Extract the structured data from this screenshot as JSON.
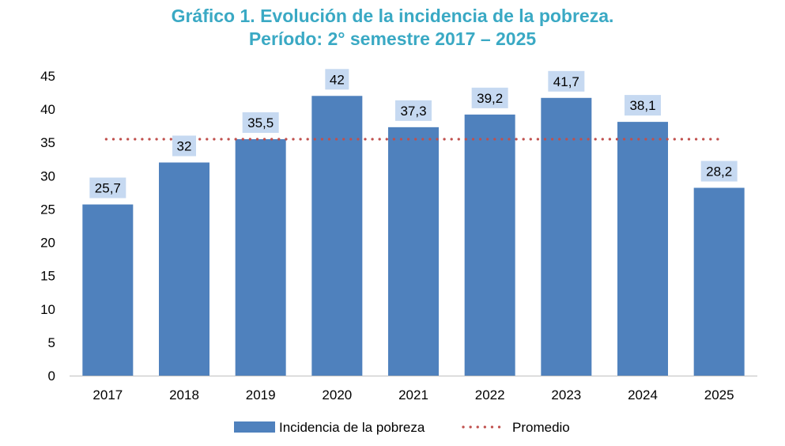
{
  "chart_data": {
    "type": "bar",
    "title_line1": "Gráfico 1. Evolución de la incidencia de la pobreza.",
    "title_line2": "Período: 2° semestre 2017 – 2025",
    "categories": [
      "2017",
      "2018",
      "2019",
      "2020",
      "2021",
      "2022",
      "2023",
      "2024",
      "2025"
    ],
    "series": [
      {
        "name": "Incidencia de la pobreza",
        "values": [
          25.7,
          32,
          35.5,
          42,
          37.3,
          39.2,
          41.7,
          38.1,
          28.2
        ],
        "labels": [
          "25,7",
          "32",
          "35,5",
          "42",
          "37,3",
          "39,2",
          "41,7",
          "38,1",
          "28,2"
        ]
      }
    ],
    "average": {
      "name": "Promedio",
      "value": 35.5,
      "style": "dotted"
    },
    "ylim": [
      0,
      45
    ],
    "yticks": [
      0,
      5,
      10,
      15,
      20,
      25,
      30,
      35,
      40,
      45
    ],
    "legend_position": "bottom",
    "grid": false,
    "colors": {
      "title": "#3aa9c4",
      "bar": "#4f81bd",
      "label_bg": "#c6d9f1",
      "average": "#c0504d",
      "axis": "#bfbfbf"
    }
  }
}
